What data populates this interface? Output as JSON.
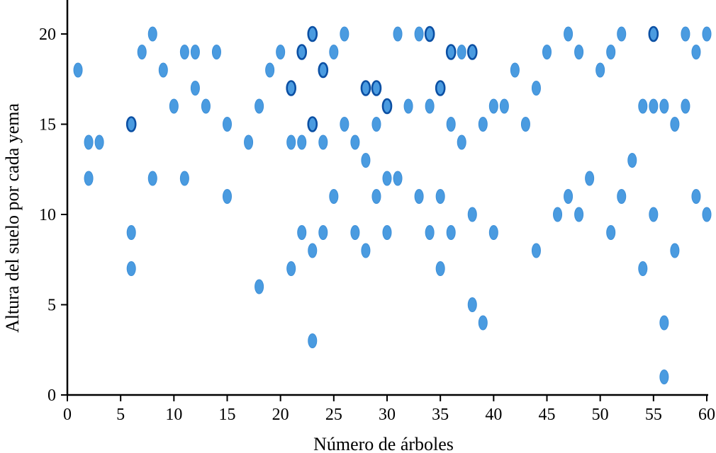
{
  "chart_data": {
    "type": "scatter",
    "title": "",
    "xlabel": "Número de árboles",
    "ylabel": "Altura del suelo por cada yema",
    "xlim": [
      0,
      60
    ],
    "ylim": [
      0,
      20
    ],
    "xticks": [
      0,
      5,
      10,
      15,
      20,
      25,
      30,
      35,
      40,
      45,
      50,
      55,
      60
    ],
    "yticks": [
      0,
      5,
      10,
      15,
      20
    ],
    "grid": false,
    "point_color": "#4a9be0",
    "points": [
      [
        1,
        18
      ],
      [
        2,
        14
      ],
      [
        2,
        12
      ],
      [
        3,
        14
      ],
      [
        6,
        15
      ],
      [
        6,
        9
      ],
      [
        6,
        7
      ],
      [
        7,
        19
      ],
      [
        8,
        20
      ],
      [
        8,
        12
      ],
      [
        9,
        18
      ],
      [
        10,
        16
      ],
      [
        11,
        19
      ],
      [
        11,
        12
      ],
      [
        12,
        19
      ],
      [
        12,
        17
      ],
      [
        13,
        16
      ],
      [
        14,
        19
      ],
      [
        15,
        15
      ],
      [
        15,
        11
      ],
      [
        17,
        14
      ],
      [
        18,
        16
      ],
      [
        18,
        6
      ],
      [
        19,
        18
      ],
      [
        20,
        19
      ],
      [
        21,
        17
      ],
      [
        21,
        14
      ],
      [
        21,
        7
      ],
      [
        22,
        19
      ],
      [
        22,
        14
      ],
      [
        22,
        9
      ],
      [
        23,
        20
      ],
      [
        23,
        15
      ],
      [
        23,
        8
      ],
      [
        23,
        3
      ],
      [
        24,
        18
      ],
      [
        24,
        14
      ],
      [
        24,
        9
      ],
      [
        25,
        19
      ],
      [
        25,
        11
      ],
      [
        26,
        20
      ],
      [
        26,
        15
      ],
      [
        27,
        14
      ],
      [
        27,
        9
      ],
      [
        28,
        17
      ],
      [
        28,
        13
      ],
      [
        28,
        8
      ],
      [
        29,
        17
      ],
      [
        29,
        15
      ],
      [
        29,
        11
      ],
      [
        30,
        16
      ],
      [
        30,
        12
      ],
      [
        30,
        9
      ],
      [
        31,
        20
      ],
      [
        31,
        12
      ],
      [
        32,
        16
      ],
      [
        33,
        20
      ],
      [
        33,
        11
      ],
      [
        34,
        20
      ],
      [
        34,
        16
      ],
      [
        34,
        9
      ],
      [
        35,
        17
      ],
      [
        35,
        11
      ],
      [
        35,
        7
      ],
      [
        36,
        19
      ],
      [
        36,
        15
      ],
      [
        36,
        9
      ],
      [
        37,
        19
      ],
      [
        37,
        14
      ],
      [
        38,
        19
      ],
      [
        38,
        10
      ],
      [
        38,
        5
      ],
      [
        39,
        15
      ],
      [
        39,
        4
      ],
      [
        40,
        16
      ],
      [
        40,
        9
      ],
      [
        41,
        16
      ],
      [
        42,
        18
      ],
      [
        43,
        15
      ],
      [
        44,
        17
      ],
      [
        44,
        8
      ],
      [
        45,
        19
      ],
      [
        46,
        10
      ],
      [
        47,
        20
      ],
      [
        47,
        11
      ],
      [
        48,
        19
      ],
      [
        48,
        10
      ],
      [
        49,
        12
      ],
      [
        50,
        18
      ],
      [
        51,
        19
      ],
      [
        51,
        9
      ],
      [
        52,
        20
      ],
      [
        52,
        11
      ],
      [
        53,
        13
      ],
      [
        54,
        16
      ],
      [
        54,
        7
      ],
      [
        55,
        20
      ],
      [
        55,
        16
      ],
      [
        55,
        10
      ],
      [
        56,
        16
      ],
      [
        56,
        4
      ],
      [
        56,
        1
      ],
      [
        57,
        15
      ],
      [
        57,
        8
      ],
      [
        58,
        20
      ],
      [
        58,
        16
      ],
      [
        59,
        19
      ],
      [
        59,
        11
      ],
      [
        60,
        20
      ],
      [
        60,
        10
      ]
    ],
    "overlapping_points": [
      [
        6,
        15
      ],
      [
        21,
        17
      ],
      [
        22,
        19
      ],
      [
        23,
        20
      ],
      [
        23,
        15
      ],
      [
        24,
        18
      ],
      [
        28,
        17
      ],
      [
        29,
        17
      ],
      [
        30,
        16
      ],
      [
        34,
        20
      ],
      [
        35,
        17
      ],
      [
        36,
        19
      ],
      [
        38,
        19
      ],
      [
        55,
        20
      ]
    ]
  }
}
